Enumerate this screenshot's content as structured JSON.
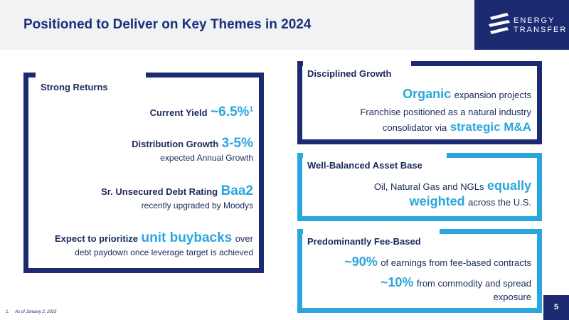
{
  "slide": {
    "title": "Positioned to Deliver on Key Themes in 2024",
    "page_number": "5",
    "footnote_marker": "1.",
    "footnote_text": "As of January 2, 2025"
  },
  "logo": {
    "line1": "ENERGY",
    "line2": "TRANSFER"
  },
  "strong_returns": {
    "heading": "Strong Returns",
    "current_yield_label": "Current Yield",
    "current_yield_value": "~6.5%",
    "current_yield_sup": "1",
    "distribution_growth_label": "Distribution Growth",
    "distribution_growth_value": "3-5%",
    "distribution_growth_sub": "expected Annual Growth",
    "debt_rating_label": "Sr. Unsecured Debt Rating",
    "debt_rating_value": "Baa2",
    "debt_rating_sub": "recently upgraded by Moodys",
    "buyback_prefix": "Expect to prioritize",
    "buyback_highlight": "unit buybacks",
    "buyback_suffix": "over",
    "buyback_line2": "debt paydown once leverage target is achieved"
  },
  "disciplined_growth": {
    "heading": "Disciplined Growth",
    "organic_highlight": "Organic",
    "organic_rest": "expansion projects",
    "franchise_line1": "Franchise positioned as a natural industry",
    "franchise_line2_prefix": "consolidator via",
    "franchise_line2_highlight": "strategic M&A"
  },
  "asset_base": {
    "heading": "Well-Balanced Asset Base",
    "line1_prefix": "Oil, Natural Gas and NGLs",
    "line1_highlight": "equally",
    "line2_highlight": "weighted",
    "line2_suffix": "across the U.S."
  },
  "fee_based": {
    "heading": "Predominantly Fee-Based",
    "line1_highlight": "~90%",
    "line1_rest": "of earnings from fee-based contracts",
    "line2_highlight": "~10%",
    "line2_rest": "from commodity and spread",
    "line3": "exposure"
  },
  "colors": {
    "navy": "#1c2a72",
    "accent_blue": "#2aa6de",
    "header_bg": "#f1f2f4"
  }
}
